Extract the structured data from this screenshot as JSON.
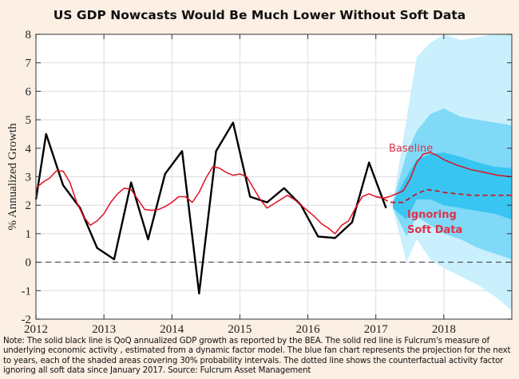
{
  "chart_data": {
    "type": "line",
    "title": "US GDP Nowcasts Would Be Much Lower Without Soft Data",
    "xlabel": "",
    "ylabel": "% Annualized Growth",
    "xlim": [
      2012,
      2019
    ],
    "ylim": [
      -2,
      8
    ],
    "xticks": [
      "2012",
      "2013",
      "2014",
      "2015",
      "2016",
      "2017",
      "2018"
    ],
    "yticks": [
      "-2",
      "-1",
      "0",
      "1",
      "2",
      "3",
      "4",
      "5",
      "6",
      "7",
      "8"
    ],
    "grid": true,
    "zero_line": {
      "y": 0,
      "style": "dashed"
    },
    "series": [
      {
        "name": "QoQ annualized GDP growth (BEA)",
        "color": "#000000",
        "style": "solid",
        "x": [
          2012.0,
          2012.15,
          2012.4,
          2012.65,
          2012.9,
          2013.15,
          2013.4,
          2013.65,
          2013.9,
          2014.15,
          2014.4,
          2014.65,
          2014.9,
          2015.15,
          2015.4,
          2015.65,
          2015.9,
          2016.15,
          2016.4,
          2016.65,
          2016.9,
          2017.15
        ],
        "y": [
          2.2,
          4.5,
          2.7,
          1.9,
          0.5,
          0.1,
          2.8,
          0.8,
          3.1,
          3.9,
          -1.1,
          3.9,
          4.9,
          2.3,
          2.1,
          2.6,
          2.0,
          0.9,
          0.85,
          1.4,
          3.5,
          1.9
        ]
      },
      {
        "name": "Baseline (Fulcrum activity factor)",
        "color": "#e0101e",
        "style": "solid",
        "x": [
          2012.0,
          2012.1,
          2012.2,
          2012.3,
          2012.4,
          2012.5,
          2012.6,
          2012.7,
          2012.8,
          2012.9,
          2013.0,
          2013.1,
          2013.2,
          2013.3,
          2013.4,
          2013.5,
          2013.6,
          2013.7,
          2013.8,
          2013.9,
          2014.0,
          2014.1,
          2014.2,
          2014.3,
          2014.4,
          2014.5,
          2014.6,
          2014.7,
          2014.8,
          2014.9,
          2015.0,
          2015.1,
          2015.2,
          2015.3,
          2015.4,
          2015.5,
          2015.6,
          2015.7,
          2015.8,
          2015.9,
          2016.0,
          2016.1,
          2016.2,
          2016.3,
          2016.4,
          2016.5,
          2016.6,
          2016.7,
          2016.8,
          2016.9,
          2017.0,
          2017.1,
          2017.2,
          2017.3,
          2017.4,
          2017.5,
          2017.6,
          2017.7,
          2017.8,
          2017.9,
          2018.0,
          2018.2,
          2018.4,
          2018.6,
          2018.8,
          2019.0
        ],
        "y": [
          2.6,
          2.8,
          2.95,
          3.2,
          3.2,
          2.8,
          2.1,
          1.6,
          1.3,
          1.45,
          1.7,
          2.1,
          2.4,
          2.6,
          2.55,
          2.2,
          1.85,
          1.82,
          1.85,
          1.95,
          2.1,
          2.3,
          2.3,
          2.1,
          2.45,
          2.95,
          3.35,
          3.3,
          3.15,
          3.05,
          3.1,
          3.0,
          2.6,
          2.2,
          1.9,
          2.05,
          2.2,
          2.35,
          2.2,
          2.0,
          1.8,
          1.6,
          1.35,
          1.2,
          1.0,
          1.3,
          1.45,
          1.9,
          2.3,
          2.4,
          2.3,
          2.25,
          2.3,
          2.4,
          2.5,
          2.9,
          3.5,
          3.8,
          3.85,
          3.75,
          3.6,
          3.4,
          3.25,
          3.15,
          3.05,
          3.0
        ]
      },
      {
        "name": "Ignoring Soft Data (counterfactual)",
        "color": "#d01020",
        "style": "dashed",
        "x": [
          2017.0,
          2017.1,
          2017.2,
          2017.3,
          2017.4,
          2017.5,
          2017.6,
          2017.75,
          2017.9,
          2018.0,
          2018.2,
          2018.4,
          2018.6,
          2018.8,
          2019.0
        ],
        "y": [
          2.3,
          2.25,
          2.1,
          2.1,
          2.1,
          2.25,
          2.4,
          2.55,
          2.5,
          2.45,
          2.4,
          2.35,
          2.35,
          2.35,
          2.35
        ]
      }
    ],
    "fan_chart": {
      "name": "Projection probability intervals (30% each)",
      "x": [
        2017.25,
        2017.45,
        2017.6,
        2017.8,
        2018.0,
        2018.25,
        2018.5,
        2018.75,
        2019.0
      ],
      "bands": [
        {
          "color": "#c9f0fc",
          "lower": [
            1.9,
            0.0,
            0.8,
            0.1,
            -0.2,
            -0.5,
            -0.8,
            -1.2,
            -1.7
          ],
          "upper": [
            2.1,
            5.0,
            7.2,
            7.7,
            8.0,
            7.8,
            7.9,
            8.0,
            8.0
          ]
        },
        {
          "color": "#7fd9f7",
          "lower": [
            1.9,
            0.9,
            1.6,
            1.3,
            1.0,
            0.8,
            0.5,
            0.3,
            0.1
          ],
          "upper": [
            2.1,
            3.8,
            4.6,
            5.2,
            5.4,
            5.1,
            5.0,
            4.9,
            4.8
          ]
        },
        {
          "color": "#38c5f1",
          "lower": [
            1.9,
            1.5,
            2.2,
            2.2,
            2.0,
            1.9,
            1.8,
            1.7,
            1.5
          ],
          "upper": [
            2.1,
            3.0,
            3.6,
            3.8,
            3.85,
            3.7,
            3.5,
            3.35,
            3.3
          ]
        }
      ]
    },
    "annotations": [
      {
        "text": "Baseline",
        "color": "#e0304a"
      },
      {
        "text": "Ignoring",
        "color": "#e0304a"
      },
      {
        "text": "Soft Data",
        "color": "#e0304a"
      }
    ]
  },
  "note": "Note: The solid black line is QoQ annualized GDP growth as reported by the BEA. The solid red line is Fulcrum's measure of underlying economic activity , estimated from a dynamic factor model. The blue fan chart represents the projection for the next to years, each of the shaded areas covering 30% probability intervals. The dotted line shows the counterfactual activity factor ignoring all soft data since January 2017. Source: Fulcrum Asset Management"
}
